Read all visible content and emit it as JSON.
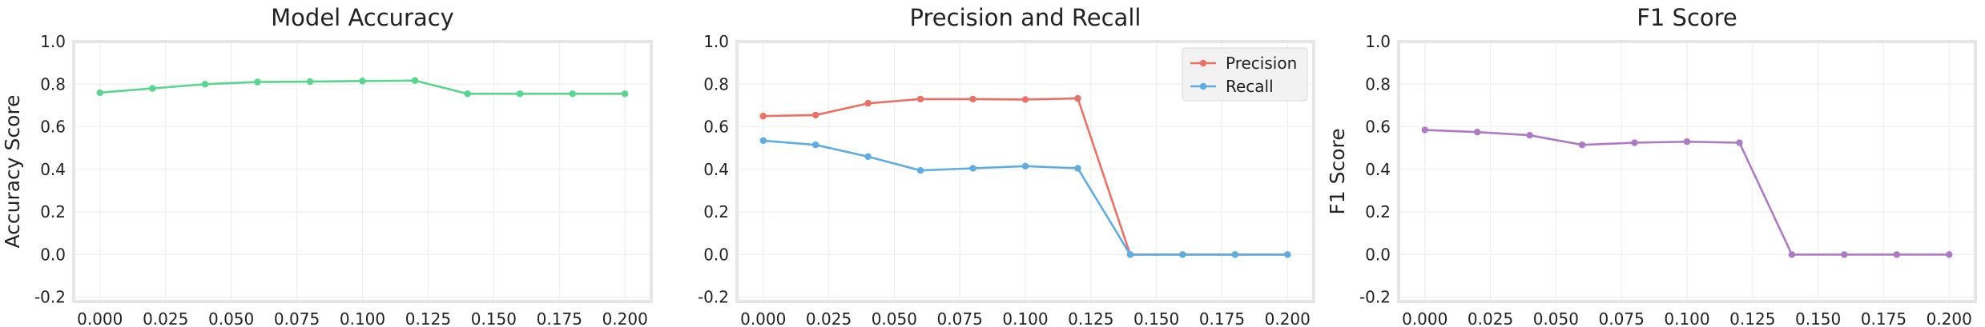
{
  "chart_data": [
    {
      "type": "line",
      "title": "Model Accuracy",
      "xlabel": "",
      "ylabel": "Accuracy Score",
      "x": [
        0.0,
        0.02,
        0.04,
        0.06,
        0.08,
        0.1,
        0.12,
        0.14,
        0.16,
        0.18,
        0.2
      ],
      "xticks": [
        "0.000",
        "0.025",
        "0.050",
        "0.075",
        "0.100",
        "0.125",
        "0.150",
        "0.175",
        "0.200"
      ],
      "yticks": [
        "-0.2",
        "0.0",
        "0.2",
        "0.4",
        "0.6",
        "0.8",
        "1.0"
      ],
      "xlim": [
        -0.01,
        0.21
      ],
      "ylim": [
        -0.22,
        1.0
      ],
      "grid": true,
      "legend": null,
      "series": [
        {
          "name": "",
          "color": "#58d68d",
          "values": [
            0.76,
            0.78,
            0.8,
            0.81,
            0.812,
            0.815,
            0.817,
            0.755,
            0.755,
            0.755,
            0.755
          ]
        }
      ]
    },
    {
      "type": "line",
      "title": "Precision and Recall",
      "xlabel": "",
      "ylabel": "",
      "x": [
        0.0,
        0.02,
        0.04,
        0.06,
        0.08,
        0.1,
        0.12,
        0.14,
        0.16,
        0.18,
        0.2
      ],
      "xticks": [
        "0.000",
        "0.025",
        "0.050",
        "0.075",
        "0.100",
        "0.125",
        "0.150",
        "0.175",
        "0.200"
      ],
      "yticks": [
        "-0.2",
        "0.0",
        "0.2",
        "0.4",
        "0.6",
        "0.8",
        "1.0"
      ],
      "xlim": [
        -0.01,
        0.21
      ],
      "ylim": [
        -0.22,
        1.0
      ],
      "grid": true,
      "legend": "top-right",
      "series": [
        {
          "name": "Precision",
          "color": "#ec7063",
          "values": [
            0.65,
            0.655,
            0.71,
            0.73,
            0.73,
            0.728,
            0.733,
            0.0,
            0.0,
            0.0,
            0.0
          ]
        },
        {
          "name": "Recall",
          "color": "#5dade2",
          "values": [
            0.535,
            0.515,
            0.46,
            0.395,
            0.405,
            0.415,
            0.405,
            0.0,
            0.0,
            0.0,
            0.0
          ]
        }
      ]
    },
    {
      "type": "line",
      "title": "F1 Score",
      "xlabel": "",
      "ylabel": "F1 Score",
      "x": [
        0.0,
        0.02,
        0.04,
        0.06,
        0.08,
        0.1,
        0.12,
        0.14,
        0.16,
        0.18,
        0.2
      ],
      "xticks": [
        "0.000",
        "0.025",
        "0.050",
        "0.075",
        "0.100",
        "0.125",
        "0.150",
        "0.175",
        "0.200"
      ],
      "yticks": [
        "-0.2",
        "0.0",
        "0.2",
        "0.4",
        "0.6",
        "0.8",
        "1.0"
      ],
      "xlim": [
        -0.01,
        0.21
      ],
      "ylim": [
        -0.22,
        1.0
      ],
      "grid": true,
      "legend": null,
      "series": [
        {
          "name": "",
          "color": "#af7ac5",
          "values": [
            0.585,
            0.575,
            0.56,
            0.515,
            0.525,
            0.53,
            0.525,
            0.0,
            0.0,
            0.0,
            0.0
          ]
        }
      ]
    }
  ]
}
